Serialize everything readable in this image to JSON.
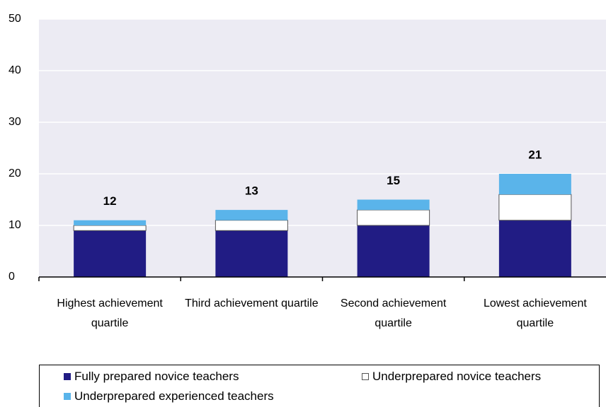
{
  "chart_data": {
    "type": "stacked_bar",
    "categories": [
      "Highest achievement quartile",
      "Third achievement quartile",
      "Second achievement quartile",
      "Lowest achievement quartile"
    ],
    "series": [
      {
        "name": "Fully prepared novice teachers",
        "color": "#211c84",
        "values": [
          9,
          9,
          10,
          11
        ]
      },
      {
        "name": "Underprepared novice teachers",
        "color": "#ffffff",
        "values": [
          1,
          2,
          3,
          5
        ]
      },
      {
        "name": "Underprepared experienced teachers",
        "color": "#5ab4ea",
        "values": [
          1,
          2,
          2,
          4
        ]
      }
    ],
    "totals": [
      12,
      13,
      15,
      21
    ],
    "ylim": [
      0,
      50
    ],
    "yticks": [
      0,
      10,
      20,
      30,
      40,
      50
    ],
    "grid": true
  }
}
